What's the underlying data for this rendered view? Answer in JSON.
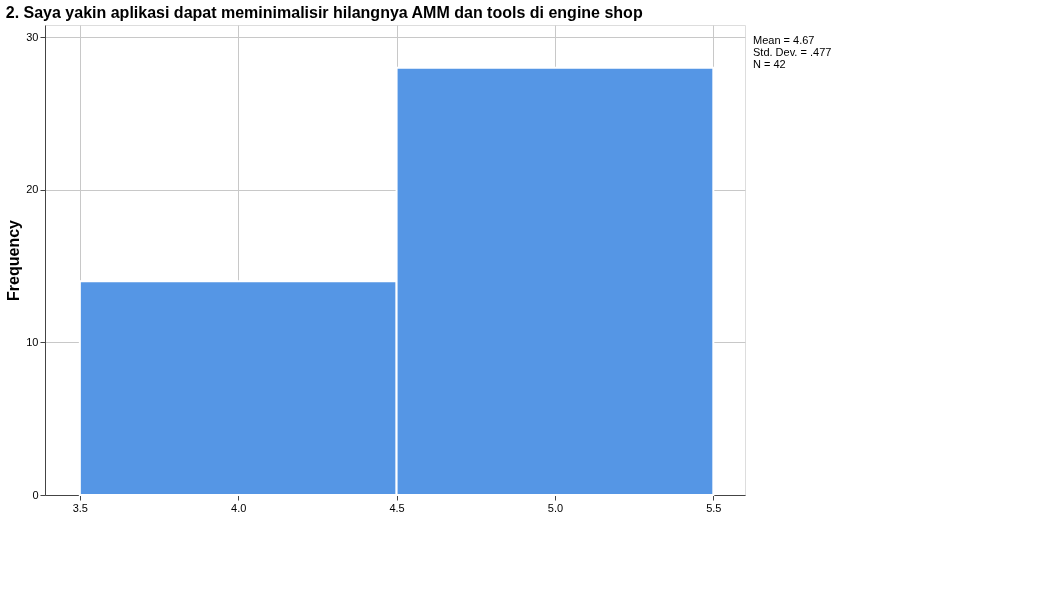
{
  "chart_data": {
    "type": "histogram",
    "title": "2. Saya yakin aplikasi dapat meminimalisir hilangnya AMM dan tools di engine shop",
    "ylabel": "Frequency",
    "bins": [
      3.5,
      4.5,
      5.5
    ],
    "values": [
      14,
      28
    ],
    "color": "#5596e5",
    "xlim": [
      3.39,
      5.6
    ],
    "xticks": [
      {
        "value": 3.5,
        "label": "3.5"
      },
      {
        "value": 4.0,
        "label": "4.0"
      },
      {
        "value": 4.5,
        "label": "4.5"
      },
      {
        "value": 5.0,
        "label": "5.0"
      },
      {
        "value": 5.5,
        "label": "5.5"
      }
    ],
    "ylim": [
      0,
      30.8
    ],
    "yticks": [
      0,
      10,
      20,
      30
    ],
    "grid": true,
    "annotations": [
      "Mean = 4.67",
      "Std. Dev. = .477",
      "N = 42"
    ]
  }
}
